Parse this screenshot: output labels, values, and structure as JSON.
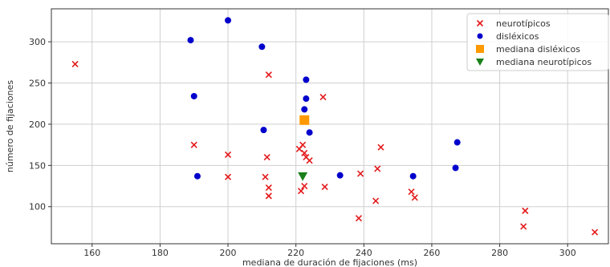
{
  "chart_data": {
    "type": "scatter",
    "xlabel": "mediana de duración de fijaciones (ms)",
    "ylabel": "número de fijaciones",
    "xlim": [
      148,
      312
    ],
    "ylim": [
      55,
      340
    ],
    "xticks": [
      160,
      180,
      200,
      220,
      240,
      260,
      280,
      300
    ],
    "yticks": [
      100,
      150,
      200,
      250,
      300
    ],
    "grid": true,
    "legend_position": "top-right",
    "series": [
      {
        "name": "neurotípicos",
        "marker": "x",
        "color": "#e41a1c",
        "x": [
          155,
          212,
          228,
          190,
          200,
          211.5,
          221,
          222,
          222.5,
          223,
          224,
          245,
          200,
          211,
          212,
          212,
          221.5,
          222.5,
          228.5,
          239,
          244,
          254,
          255,
          243.5,
          238.5,
          287,
          287.5,
          308
        ],
        "y": [
          273,
          260,
          233,
          175,
          163,
          160,
          170,
          175,
          165,
          160,
          156,
          172,
          136,
          136,
          123,
          113,
          119,
          125,
          124,
          140,
          146,
          118,
          111,
          107,
          86,
          76,
          95,
          69
        ]
      },
      {
        "name": "disléxicos",
        "marker": "o",
        "color": "#0000cc",
        "x": [
          200,
          189,
          210,
          223,
          190,
          223,
          222.5,
          210.5,
          224,
          191,
          233,
          254.5,
          267.5,
          267
        ],
        "y": [
          326,
          302,
          294,
          254,
          234,
          231,
          218,
          193,
          190,
          137,
          138,
          137,
          178,
          147
        ]
      },
      {
        "name": "mediana disléxicos",
        "marker": "s",
        "color": "#ff9900",
        "x": [
          222.5
        ],
        "y": [
          205
        ]
      },
      {
        "name": "mediana neurotípicos",
        "marker": "v",
        "color": "#1a7f1a",
        "x": [
          222
        ],
        "y": [
          137
        ]
      }
    ]
  }
}
